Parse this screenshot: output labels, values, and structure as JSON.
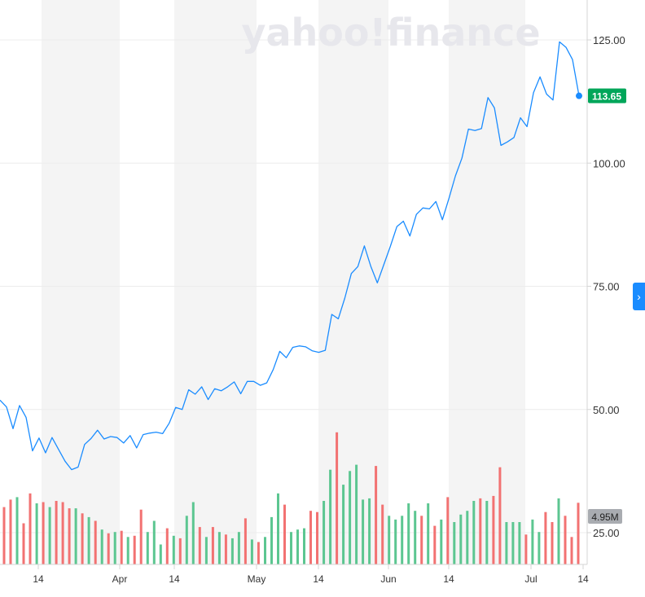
{
  "brand": {
    "watermark": "yahoo!finance"
  },
  "expand_icon": "chevron-right-icon",
  "colors": {
    "price_line": "#1a8cff",
    "current_badge": "#00a65a",
    "volume_up": "#5cc691",
    "volume_down": "#f27272",
    "volume_badge": "#a9acb1",
    "band": "#f4f4f4",
    "grid": "#ececec"
  },
  "chart_data": {
    "type": "line",
    "y_ticks": [
      "125.00",
      "100.00",
      "75.00",
      "50.00",
      "25.00"
    ],
    "ylim": [
      20,
      135
    ],
    "x_tick_labels": [
      "14",
      "Apr",
      "14",
      "May",
      "14",
      "Jun",
      "14",
      "Jul",
      "14"
    ],
    "shaded_bands": true,
    "price": {
      "values": [
        51.9,
        50.5,
        46.1,
        50.8,
        48.4,
        41.6,
        44.2,
        41.2,
        44.3,
        41.9,
        39.5,
        37.8,
        38.3,
        42.9,
        44.1,
        45.8,
        44.0,
        44.5,
        44.3,
        43.2,
        44.7,
        42.2,
        44.9,
        45.2,
        45.4,
        45.1,
        47.2,
        50.4,
        50.0,
        54.0,
        53.1,
        54.6,
        52.0,
        54.2,
        53.8,
        54.6,
        55.6,
        53.2,
        55.7,
        55.7,
        54.9,
        55.4,
        58.1,
        61.8,
        60.5,
        62.6,
        62.9,
        62.7,
        61.9,
        61.6,
        62.0,
        69.3,
        68.4,
        72.6,
        77.6,
        79.0,
        83.2,
        79.0,
        75.7,
        79.4,
        83.1,
        87.1,
        88.2,
        85.2,
        89.6,
        90.9,
        90.7,
        92.2,
        88.5,
        92.8,
        97.4,
        101.0,
        106.9,
        106.6,
        107.0,
        113.3,
        111.2,
        103.6,
        104.3,
        105.2,
        109.2,
        107.4,
        114.3,
        117.5,
        114.0,
        112.8,
        124.6,
        123.5,
        121.0,
        113.65
      ],
      "current": "113.65"
    },
    "volume": {
      "current_label": "4.95M",
      "bars": [
        {
          "v": 4.6,
          "up": false
        },
        {
          "v": 5.2,
          "up": false
        },
        {
          "v": 5.4,
          "up": true
        },
        {
          "v": 3.3,
          "up": false
        },
        {
          "v": 5.7,
          "up": false
        },
        {
          "v": 4.9,
          "up": true
        },
        {
          "v": 5.0,
          "up": false
        },
        {
          "v": 4.6,
          "up": true
        },
        {
          "v": 5.1,
          "up": false
        },
        {
          "v": 5.0,
          "up": false
        },
        {
          "v": 4.5,
          "up": false
        },
        {
          "v": 4.5,
          "up": true
        },
        {
          "v": 4.1,
          "up": false
        },
        {
          "v": 3.8,
          "up": true
        },
        {
          "v": 3.5,
          "up": false
        },
        {
          "v": 2.8,
          "up": true
        },
        {
          "v": 2.5,
          "up": false
        },
        {
          "v": 2.6,
          "up": true
        },
        {
          "v": 2.7,
          "up": false
        },
        {
          "v": 2.2,
          "up": true
        },
        {
          "v": 2.3,
          "up": false
        },
        {
          "v": 4.4,
          "up": false
        },
        {
          "v": 2.6,
          "up": true
        },
        {
          "v": 3.5,
          "up": true
        },
        {
          "v": 1.6,
          "up": true
        },
        {
          "v": 2.9,
          "up": false
        },
        {
          "v": 2.3,
          "up": true
        },
        {
          "v": 2.1,
          "up": false
        },
        {
          "v": 3.9,
          "up": true
        },
        {
          "v": 5.0,
          "up": true
        },
        {
          "v": 3.0,
          "up": false
        },
        {
          "v": 2.2,
          "up": true
        },
        {
          "v": 3.0,
          "up": false
        },
        {
          "v": 2.6,
          "up": true
        },
        {
          "v": 2.4,
          "up": false
        },
        {
          "v": 2.1,
          "up": true
        },
        {
          "v": 2.6,
          "up": true
        },
        {
          "v": 3.7,
          "up": false
        },
        {
          "v": 2.0,
          "up": true
        },
        {
          "v": 1.8,
          "up": false
        },
        {
          "v": 2.2,
          "up": true
        },
        {
          "v": 3.8,
          "up": true
        },
        {
          "v": 5.7,
          "up": true
        },
        {
          "v": 4.8,
          "up": false
        },
        {
          "v": 2.6,
          "up": true
        },
        {
          "v": 2.8,
          "up": true
        },
        {
          "v": 2.9,
          "up": true
        },
        {
          "v": 4.3,
          "up": false
        },
        {
          "v": 4.2,
          "up": false
        },
        {
          "v": 5.1,
          "up": true
        },
        {
          "v": 7.6,
          "up": true
        },
        {
          "v": 10.6,
          "up": false
        },
        {
          "v": 6.4,
          "up": true
        },
        {
          "v": 7.5,
          "up": true
        },
        {
          "v": 8.0,
          "up": true
        },
        {
          "v": 5.2,
          "up": true
        },
        {
          "v": 5.3,
          "up": true
        },
        {
          "v": 7.9,
          "up": false
        },
        {
          "v": 4.8,
          "up": false
        },
        {
          "v": 3.9,
          "up": true
        },
        {
          "v": 3.6,
          "up": true
        },
        {
          "v": 3.9,
          "up": true
        },
        {
          "v": 4.9,
          "up": true
        },
        {
          "v": 4.3,
          "up": true
        },
        {
          "v": 3.9,
          "up": false
        },
        {
          "v": 4.9,
          "up": true
        },
        {
          "v": 3.1,
          "up": false
        },
        {
          "v": 3.6,
          "up": true
        },
        {
          "v": 5.4,
          "up": false
        },
        {
          "v": 3.4,
          "up": true
        },
        {
          "v": 4.0,
          "up": true
        },
        {
          "v": 4.3,
          "up": true
        },
        {
          "v": 5.1,
          "up": true
        },
        {
          "v": 5.3,
          "up": false
        },
        {
          "v": 5.1,
          "up": true
        },
        {
          "v": 5.5,
          "up": false
        },
        {
          "v": 7.8,
          "up": false
        },
        {
          "v": 3.4,
          "up": true
        },
        {
          "v": 3.4,
          "up": true
        },
        {
          "v": 3.4,
          "up": true
        },
        {
          "v": 2.4,
          "up": false
        },
        {
          "v": 3.6,
          "up": true
        },
        {
          "v": 2.6,
          "up": true
        },
        {
          "v": 4.2,
          "up": false
        },
        {
          "v": 3.4,
          "up": false
        },
        {
          "v": 5.3,
          "up": true
        },
        {
          "v": 3.9,
          "up": false
        },
        {
          "v": 2.2,
          "up": false
        },
        {
          "v": 4.95,
          "up": false
        }
      ]
    }
  }
}
